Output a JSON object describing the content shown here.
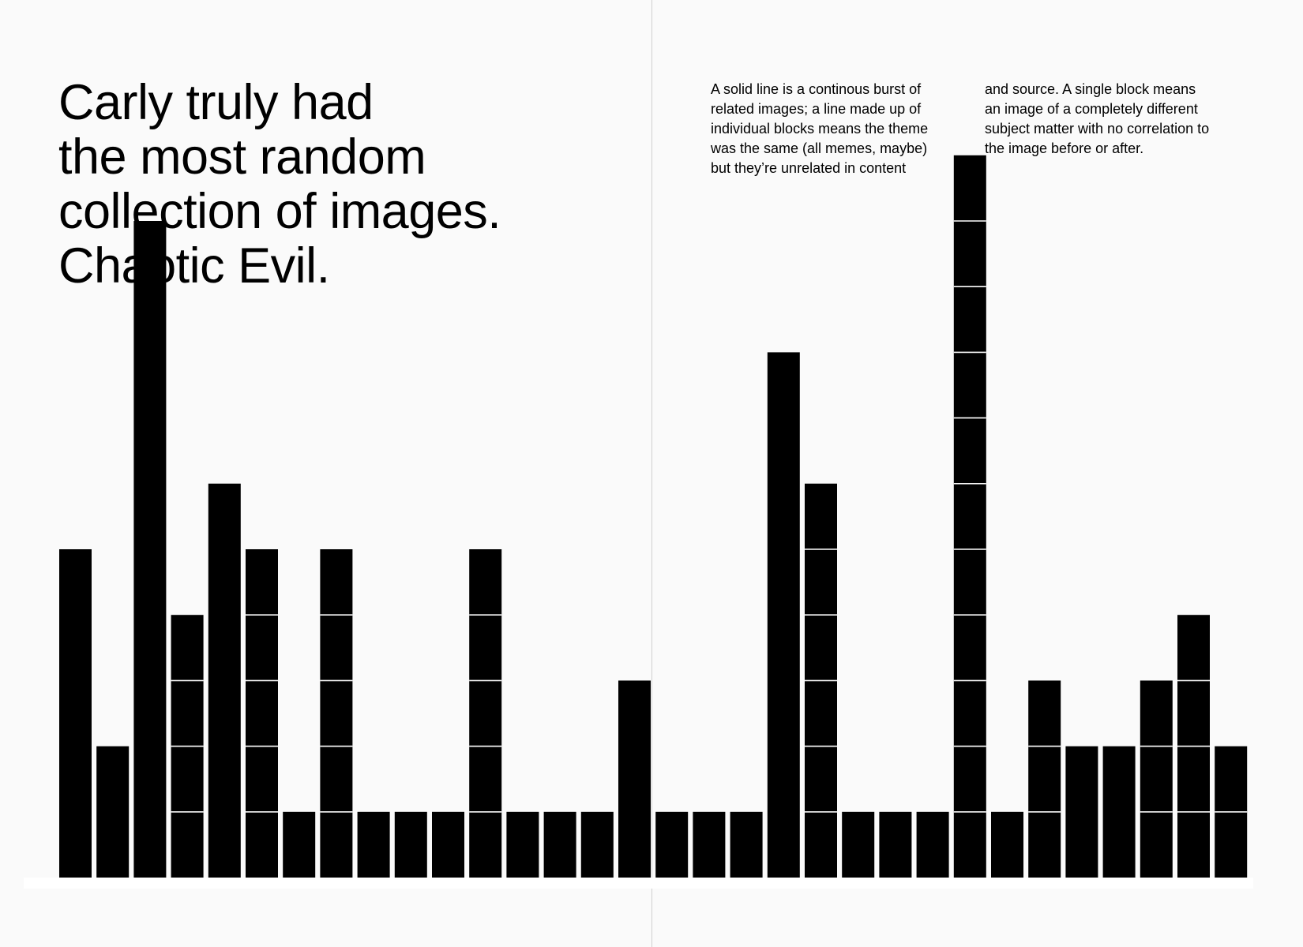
{
  "headline": {
    "lines": [
      "Carly truly had",
      "the most random",
      "collection of images.",
      "Chaotic Evil."
    ]
  },
  "explanation": {
    "left_lines": [
      "A solid line is a continous burst of",
      "related images; a line made up of",
      "individual blocks means the theme",
      "was the same (all memes, maybe)",
      "but they’re unrelated in content"
    ],
    "right_lines": [
      "and source. A single block means",
      "an image of a completely different",
      "subject matter with no correlation to",
      "the image before or after."
    ]
  },
  "colors": {
    "bar": "#000000",
    "divider": "#ffffff",
    "background": "#fafafa"
  },
  "chart_data": {
    "type": "bar",
    "title": "",
    "xlabel": "",
    "ylabel": "",
    "ylim": [
      0,
      11
    ],
    "grid": false,
    "legend": "none",
    "values": [
      5,
      2,
      10,
      4,
      6,
      5,
      1,
      5,
      1,
      1,
      1,
      5,
      1,
      1,
      1,
      3,
      1,
      1,
      1,
      8,
      6,
      1,
      1,
      1,
      11,
      1,
      3,
      2,
      2,
      3,
      4,
      2
    ],
    "solid": [
      true,
      true,
      true,
      false,
      true,
      false,
      true,
      false,
      true,
      true,
      true,
      false,
      true,
      true,
      true,
      true,
      true,
      true,
      true,
      true,
      false,
      true,
      true,
      true,
      false,
      true,
      false,
      true,
      true,
      false,
      false,
      false
    ]
  }
}
